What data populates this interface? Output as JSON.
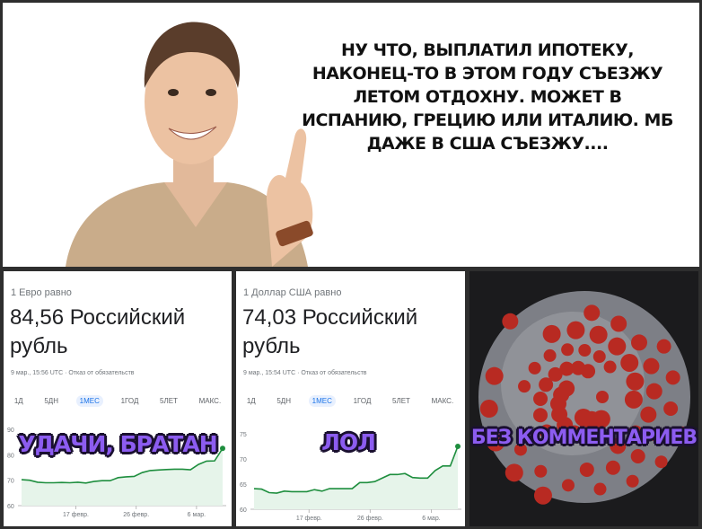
{
  "top": {
    "caption": "Ну что, выплатил ипотеку, наконец-то в этом году съезжу летом отдохну. Может в Испанию, Грецию или Италию. Мб даже в США съезжу...."
  },
  "euro": {
    "label": "1 Евро равно",
    "value": "84,56 Российский рубль",
    "date": "9 мар., 15:56 UTC · Отказ от обязательств",
    "overlay": "УДАЧИ, БРАТАН"
  },
  "usd": {
    "label": "1 Доллар США равно",
    "value": "74,03 Российский рубль",
    "date": "9 мар., 15:54 UTC · Отказ от обязательств",
    "overlay": "ЛОЛ"
  },
  "tabs": [
    "1Д",
    "5ДН",
    "1МЕС",
    "1ГОД",
    "5ЛЕТ",
    "МАКС."
  ],
  "selected_tab": "1МЕС",
  "virus": {
    "overlay": "БЕЗ КОММЕНТАРИЕВ"
  },
  "chart_data": [
    {
      "type": "area",
      "title": "1 Евро равно",
      "ylim": [
        60,
        90
      ],
      "yticks": [
        60,
        70,
        80,
        90
      ],
      "xticks": [
        "17 февр.",
        "26 февр.",
        "6 мар."
      ],
      "color": "#1e8e3e",
      "values": [
        70.2,
        70,
        69.2,
        69,
        69,
        69.1,
        69,
        69.2,
        68.9,
        69.5,
        69.8,
        69.8,
        71,
        71.3,
        71.5,
        73,
        73.8,
        74,
        74.2,
        74.3,
        74.3,
        74.1,
        76.2,
        77.5,
        77.6,
        82.5
      ]
    },
    {
      "type": "area",
      "title": "1 Доллар США равно",
      "ylim": [
        60,
        75
      ],
      "yticks": [
        60,
        65,
        70,
        75
      ],
      "xticks": [
        "17 февр.",
        "26 февр.",
        "6 мар."
      ],
      "color": "#1e8e3e",
      "values": [
        64.1,
        64,
        63.3,
        63.2,
        63.6,
        63.5,
        63.5,
        63.5,
        63.9,
        63.6,
        64.1,
        64.1,
        64.1,
        64.1,
        65.3,
        65.3,
        65.5,
        66.2,
        66.9,
        66.9,
        67.1,
        66.3,
        66.2,
        66.2,
        67.7,
        68.6,
        68.6,
        72.5
      ]
    }
  ]
}
